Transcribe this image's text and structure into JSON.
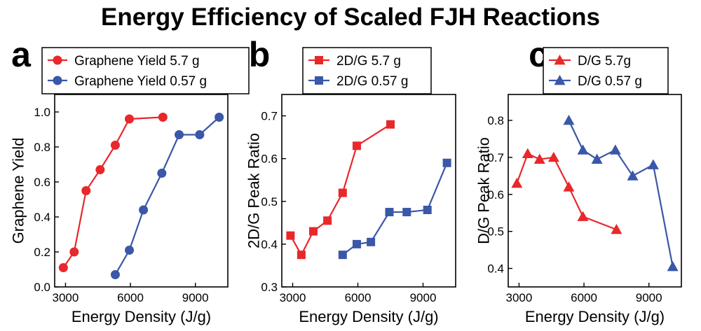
{
  "figure": {
    "title": "Energy Efficiency of Scaled FJH Reactions"
  },
  "colors": {
    "red": "#e8282b",
    "blue": "#3a57a8",
    "frame": "#000000"
  },
  "chart_data": [
    {
      "panel": "a",
      "type": "line",
      "marker": "circle",
      "xlabel": "Energy Density (J/g)",
      "ylabel": "Graphene Yield",
      "xlim": [
        2500,
        10500
      ],
      "ylim": [
        0.0,
        1.1
      ],
      "xticks": [
        3000,
        6000,
        9000
      ],
      "yticks": [
        0.0,
        0.2,
        0.4,
        0.6,
        0.8,
        1.0
      ],
      "ytick_format": 1,
      "legend": "top-left",
      "series": [
        {
          "name": "Graphene Yield 5.7 g",
          "color": "red",
          "x": [
            2900,
            3400,
            3950,
            4600,
            5300,
            5950,
            7500
          ],
          "y": [
            0.11,
            0.2,
            0.55,
            0.67,
            0.81,
            0.96,
            0.97
          ]
        },
        {
          "name": "Graphene Yield 0.57 g",
          "color": "blue",
          "x": [
            5300,
            5950,
            6600,
            7450,
            8250,
            9200,
            10100
          ],
          "y": [
            0.07,
            0.21,
            0.44,
            0.65,
            0.87,
            0.87,
            0.97
          ]
        }
      ]
    },
    {
      "panel": "b",
      "type": "line",
      "marker": "square",
      "xlabel": "Energy Density (J/g)",
      "ylabel": "2D/G Peak Ratio",
      "xlim": [
        2500,
        10500
      ],
      "ylim": [
        0.3,
        0.75
      ],
      "xticks": [
        3000,
        6000,
        9000
      ],
      "yticks": [
        0.3,
        0.4,
        0.5,
        0.6,
        0.7
      ],
      "ytick_format": 1,
      "legend": "top-left",
      "series": [
        {
          "name": "2D/G 5.7 g",
          "color": "red",
          "x": [
            2900,
            3400,
            3950,
            4600,
            5300,
            5950,
            7500
          ],
          "y": [
            0.42,
            0.375,
            0.43,
            0.455,
            0.52,
            0.63,
            0.68
          ]
        },
        {
          "name": "2D/G 0.57 g",
          "color": "blue",
          "x": [
            5300,
            5950,
            6600,
            7450,
            8250,
            9200,
            10100
          ],
          "y": [
            0.375,
            0.4,
            0.405,
            0.475,
            0.475,
            0.48,
            0.59
          ]
        }
      ]
    },
    {
      "panel": "c",
      "type": "line",
      "marker": "triangle",
      "xlabel": "Energy Density (J/g)",
      "ylabel": "D/G Peak Ratio",
      "xlim": [
        2500,
        10500
      ],
      "ylim": [
        0.35,
        0.87
      ],
      "xticks": [
        3000,
        6000,
        9000
      ],
      "yticks": [
        0.4,
        0.5,
        0.6,
        0.7,
        0.8
      ],
      "ytick_format": 1,
      "legend": "top-left",
      "series": [
        {
          "name": "D/G 5.7g",
          "color": "red",
          "x": [
            2900,
            3400,
            3950,
            4600,
            5300,
            5950,
            7500
          ],
          "y": [
            0.63,
            0.71,
            0.695,
            0.7,
            0.62,
            0.54,
            0.505
          ]
        },
        {
          "name": "D/G 0.57 g",
          "color": "blue",
          "x": [
            5300,
            5950,
            6600,
            7450,
            8250,
            9200,
            10100
          ],
          "y": [
            0.8,
            0.72,
            0.695,
            0.72,
            0.65,
            0.68,
            0.405
          ]
        }
      ]
    }
  ]
}
